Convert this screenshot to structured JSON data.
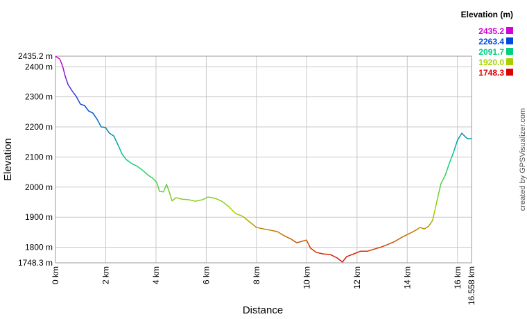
{
  "chart_data": {
    "type": "line",
    "x_label": "Distance",
    "y_label": "Elevation",
    "credit": "created by GPSVisualizer.com",
    "xlim": [
      0,
      16.558
    ],
    "ylim": [
      1748.3,
      2435.2
    ],
    "xticks": [
      {
        "value": 0,
        "label": "0 km"
      },
      {
        "value": 2,
        "label": "2 km"
      },
      {
        "value": 4,
        "label": "4 km"
      },
      {
        "value": 6,
        "label": "6 km"
      },
      {
        "value": 8,
        "label": "8 km"
      },
      {
        "value": 10,
        "label": "10 km"
      },
      {
        "value": 12,
        "label": "12 km"
      },
      {
        "value": 14,
        "label": "14 km"
      },
      {
        "value": 16,
        "label": "16 km"
      },
      {
        "value": 16.558,
        "label": "16.558 km"
      }
    ],
    "yticks": [
      {
        "value": 1748.3,
        "label": "1748.3 m"
      },
      {
        "value": 1800,
        "label": "1800 m"
      },
      {
        "value": 1900,
        "label": "1900 m"
      },
      {
        "value": 2000,
        "label": "2000 m"
      },
      {
        "value": 2100,
        "label": "2100 m"
      },
      {
        "value": 2200,
        "label": "2200 m"
      },
      {
        "value": 2300,
        "label": "2300 m"
      },
      {
        "value": 2400,
        "label": "2400 m"
      },
      {
        "value": 2435.2,
        "label": "2435.2 m"
      }
    ],
    "grid": true,
    "legend": {
      "title": "Elevation (m)",
      "values": [
        2435.2,
        2263.4,
        2091.7,
        1920.0,
        1748.3
      ],
      "value_labels": [
        "2435.2",
        "2263.4",
        "2091.7",
        "1920.0",
        "1748.3"
      ],
      "colors": [
        "#d400d4",
        "#0048e0",
        "#00d080",
        "#a8d000",
        "#e00000"
      ]
    },
    "series": [
      {
        "name": "Elevation",
        "x": [
          0,
          0.17,
          0.28,
          0.39,
          0.5,
          0.66,
          0.83,
          0.99,
          1.16,
          1.32,
          1.49,
          1.66,
          1.82,
          1.99,
          2.15,
          2.32,
          2.48,
          2.65,
          2.81,
          3.04,
          3.26,
          3.48,
          3.7,
          3.86,
          4.03,
          4.14,
          4.3,
          4.42,
          4.53,
          4.64,
          4.8,
          5.02,
          5.3,
          5.57,
          5.85,
          6.07,
          6.35,
          6.62,
          6.9,
          7.17,
          7.45,
          7.73,
          8.0,
          8.28,
          8.55,
          8.83,
          9.11,
          9.38,
          9.6,
          9.82,
          9.99,
          10.15,
          10.38,
          10.65,
          10.93,
          11.2,
          11.42,
          11.59,
          11.87,
          12.14,
          12.42,
          12.69,
          12.97,
          13.25,
          13.52,
          13.8,
          14.07,
          14.35,
          14.51,
          14.68,
          14.85,
          15.01,
          15.18,
          15.34,
          15.51,
          15.67,
          15.84,
          16.0,
          16.17,
          16.28,
          16.39,
          16.558
        ],
        "values": [
          2435,
          2426,
          2403,
          2368,
          2341,
          2320,
          2301,
          2276,
          2271,
          2253,
          2246,
          2225,
          2200,
          2198,
          2179,
          2170,
          2142,
          2110,
          2092,
          2078,
          2069,
          2055,
          2039,
          2030,
          2016,
          1986,
          1984,
          2009,
          1984,
          1954,
          1965,
          1960,
          1958,
          1953,
          1958,
          1967,
          1963,
          1953,
          1935,
          1912,
          1903,
          1884,
          1866,
          1861,
          1857,
          1852,
          1838,
          1827,
          1815,
          1820,
          1824,
          1797,
          1783,
          1778,
          1776,
          1765,
          1751,
          1769,
          1778,
          1787,
          1787,
          1794,
          1801,
          1810,
          1820,
          1834,
          1845,
          1857,
          1866,
          1861,
          1870,
          1889,
          1953,
          2011,
          2039,
          2078,
          2115,
          2156,
          2179,
          2170,
          2161,
          2161
        ]
      }
    ]
  }
}
